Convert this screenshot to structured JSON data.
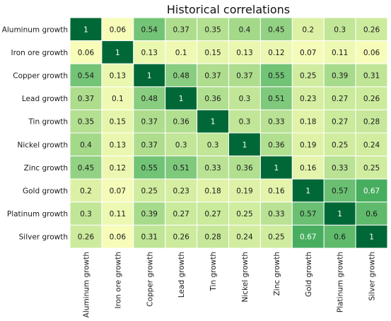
{
  "chart_data": {
    "type": "heatmap",
    "title": "Historical correlations",
    "row_labels": [
      "Aluminum growth",
      "Iron ore growth",
      "Copper growth",
      "Lead growth",
      "Tin growth",
      "Nickel growth",
      "Zinc growth",
      "Gold growth",
      "Platinum growth",
      "Silver growth"
    ],
    "col_labels": [
      "Aluminum growth",
      "Iron ore growth",
      "Copper growth",
      "Lead growth",
      "Tin growth",
      "Nickel growth",
      "Zinc growth",
      "Gold growth",
      "Platinum growth",
      "Silver growth"
    ],
    "values": [
      [
        1,
        0.06,
        0.54,
        0.37,
        0.35,
        0.4,
        0.45,
        0.2,
        0.3,
        0.26
      ],
      [
        0.06,
        1,
        0.13,
        0.1,
        0.15,
        0.13,
        0.12,
        0.07,
        0.11,
        0.06
      ],
      [
        0.54,
        0.13,
        1,
        0.48,
        0.37,
        0.37,
        0.55,
        0.25,
        0.39,
        0.31
      ],
      [
        0.37,
        0.1,
        0.48,
        1,
        0.36,
        0.3,
        0.51,
        0.23,
        0.27,
        0.26
      ],
      [
        0.35,
        0.15,
        0.37,
        0.36,
        1,
        0.3,
        0.33,
        0.18,
        0.27,
        0.28
      ],
      [
        0.4,
        0.13,
        0.37,
        0.3,
        0.3,
        1,
        0.36,
        0.19,
        0.25,
        0.24
      ],
      [
        0.45,
        0.12,
        0.55,
        0.51,
        0.33,
        0.36,
        1,
        0.16,
        0.33,
        0.25
      ],
      [
        0.2,
        0.07,
        0.25,
        0.23,
        0.18,
        0.19,
        0.16,
        1,
        0.57,
        0.67
      ],
      [
        0.3,
        0.11,
        0.39,
        0.27,
        0.27,
        0.25,
        0.33,
        0.57,
        1,
        0.6
      ],
      [
        0.26,
        0.06,
        0.31,
        0.26,
        0.28,
        0.24,
        0.25,
        0.67,
        0.6,
        1
      ]
    ],
    "colormap": "yellow-green",
    "color_stops": [
      "#f7fcb9",
      "#d9f0a3",
      "#addd8e",
      "#78c679",
      "#41ab5d",
      "#238443",
      "#006837"
    ],
    "grid": false,
    "annotations": true
  }
}
